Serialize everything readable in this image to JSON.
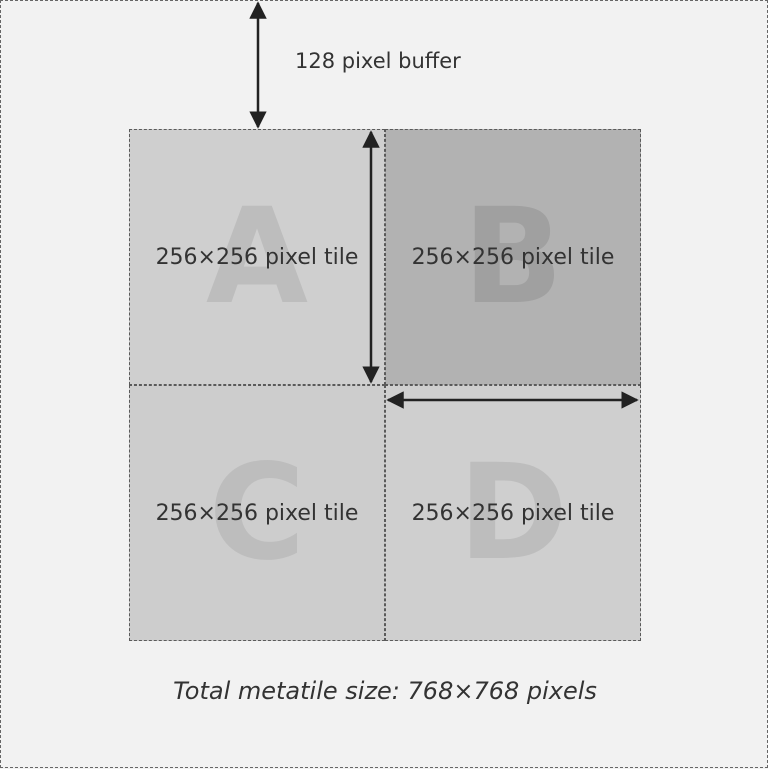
{
  "buffer_label": "128 pixel buffer",
  "tiles": [
    {
      "letter": "A",
      "label": "256×256 pixel tile"
    },
    {
      "letter": "B",
      "label": "256×256 pixel tile"
    },
    {
      "letter": "C",
      "label": "256×256 pixel tile"
    },
    {
      "letter": "D",
      "label": "256×256 pixel tile"
    }
  ],
  "caption": "Total metatile size: 768×768 pixels",
  "colors": {
    "background": "#f2f2f2",
    "tile_light": "#cfcfcf",
    "tile_dark": "#b2b2b2",
    "arrow": "#222222",
    "text": "#333333"
  }
}
